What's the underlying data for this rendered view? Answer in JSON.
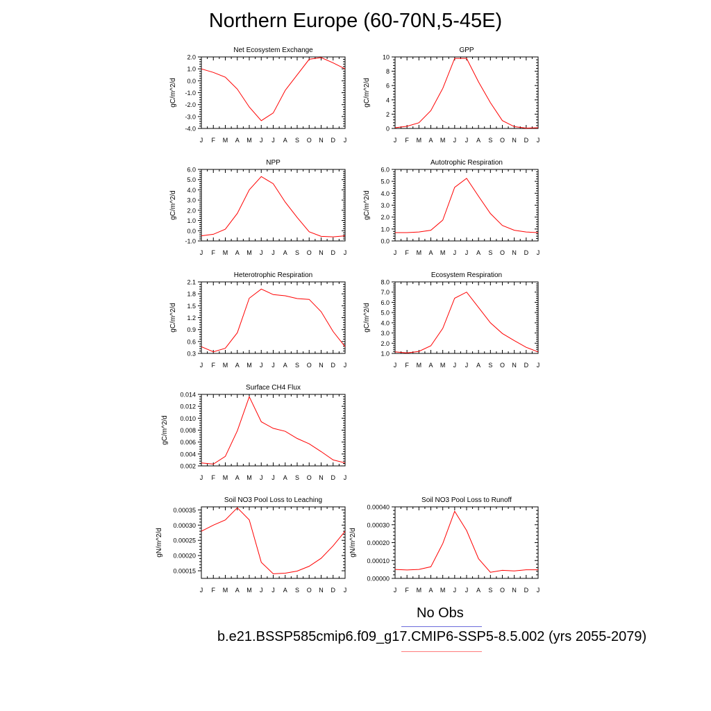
{
  "figure": {
    "title": "Northern Europe (60-70N,5-45E)",
    "legend": {
      "obs_label": "No Obs",
      "case_label": "b.e21.BSSP585cmip6.f09_g17.CMIP6-SSP5-8.5.002 (yrs 2055-2079)",
      "obs_color": "#6b6bdb",
      "case_color": "#ff0000"
    }
  },
  "chart_data": [
    {
      "type": "line",
      "title": "Net Ecosystem Exchange",
      "ylabel": "gC/m^2/d",
      "categories": [
        "J",
        "F",
        "M",
        "A",
        "M",
        "J",
        "J",
        "A",
        "S",
        "O",
        "N",
        "D",
        "J"
      ],
      "values": [
        1.0,
        0.7,
        0.3,
        -0.7,
        -2.2,
        -3.35,
        -2.7,
        -0.8,
        0.5,
        1.8,
        1.95,
        1.5,
        1.0
      ],
      "ylim": [
        -4.0,
        2.0
      ],
      "yticks": [
        "-4.0",
        "-3.0",
        "-2.0",
        "-1.0",
        "0.0",
        "1.0",
        "2.0"
      ],
      "ytick_values": [
        -4.0,
        -3.0,
        -2.0,
        -1.0,
        0.0,
        1.0,
        2.0
      ],
      "color": "#ff0000"
    },
    {
      "type": "line",
      "title": "GPP",
      "ylabel": "gC/m^2/d",
      "categories": [
        "J",
        "F",
        "M",
        "A",
        "M",
        "J",
        "J",
        "A",
        "S",
        "O",
        "N",
        "D",
        "J"
      ],
      "values": [
        0.1,
        0.3,
        0.8,
        2.5,
        5.6,
        9.8,
        9.8,
        6.5,
        3.6,
        1.1,
        0.25,
        0.05,
        0.1
      ],
      "ylim": [
        0,
        10
      ],
      "yticks": [
        "0",
        "2",
        "4",
        "6",
        "8",
        "10"
      ],
      "ytick_values": [
        0,
        2,
        4,
        6,
        8,
        10
      ],
      "color": "#ff0000"
    },
    {
      "type": "line",
      "title": "NPP",
      "ylabel": "gC/m^2/d",
      "categories": [
        "J",
        "F",
        "M",
        "A",
        "M",
        "J",
        "J",
        "A",
        "S",
        "O",
        "N",
        "D",
        "J"
      ],
      "values": [
        -0.5,
        -0.35,
        0.15,
        1.7,
        4.0,
        5.3,
        4.6,
        2.8,
        1.3,
        -0.1,
        -0.55,
        -0.6,
        -0.5
      ],
      "ylim": [
        -1.0,
        6.0
      ],
      "yticks": [
        "-1.0",
        "0.0",
        "1.0",
        "2.0",
        "3.0",
        "4.0",
        "5.0",
        "6.0"
      ],
      "ytick_values": [
        -1.0,
        0.0,
        1.0,
        2.0,
        3.0,
        4.0,
        5.0,
        6.0
      ],
      "color": "#ff0000"
    },
    {
      "type": "line",
      "title": "Autotrophic Respiration",
      "ylabel": "gC/m^2/d",
      "categories": [
        "J",
        "F",
        "M",
        "A",
        "M",
        "J",
        "J",
        "A",
        "S",
        "O",
        "N",
        "D",
        "J"
      ],
      "values": [
        0.7,
        0.7,
        0.75,
        0.9,
        1.75,
        4.5,
        5.25,
        3.75,
        2.3,
        1.3,
        0.9,
        0.75,
        0.7
      ],
      "ylim": [
        0.0,
        6.0
      ],
      "yticks": [
        "0.0",
        "1.0",
        "2.0",
        "3.0",
        "4.0",
        "5.0",
        "6.0"
      ],
      "ytick_values": [
        0.0,
        1.0,
        2.0,
        3.0,
        4.0,
        5.0,
        6.0
      ],
      "color": "#ff0000"
    },
    {
      "type": "line",
      "title": "Heterotrophic Respiration",
      "ylabel": "gC/m^2/d",
      "categories": [
        "J",
        "F",
        "M",
        "A",
        "M",
        "J",
        "J",
        "A",
        "S",
        "O",
        "N",
        "D",
        "J"
      ],
      "values": [
        0.47,
        0.34,
        0.43,
        0.82,
        1.69,
        1.92,
        1.78,
        1.75,
        1.68,
        1.66,
        1.35,
        0.85,
        0.47
      ],
      "ylim": [
        0.3,
        2.1
      ],
      "yticks": [
        "0.3",
        "0.6",
        "0.9",
        "1.2",
        "1.5",
        "1.8",
        "2.1"
      ],
      "ytick_values": [
        0.3,
        0.6,
        0.9,
        1.2,
        1.5,
        1.8,
        2.1
      ],
      "color": "#ff0000"
    },
    {
      "type": "line",
      "title": "Ecosystem Respiration",
      "ylabel": "gC/m^2/d",
      "categories": [
        "J",
        "F",
        "M",
        "A",
        "M",
        "J",
        "J",
        "A",
        "S",
        "O",
        "N",
        "D",
        "J"
      ],
      "values": [
        1.15,
        1.05,
        1.2,
        1.75,
        3.45,
        6.4,
        7.0,
        5.5,
        4.0,
        2.95,
        2.25,
        1.6,
        1.15
      ],
      "ylim": [
        1.0,
        8.0
      ],
      "yticks": [
        "1.0",
        "2.0",
        "3.0",
        "4.0",
        "5.0",
        "6.0",
        "7.0",
        "8.0"
      ],
      "ytick_values": [
        1.0,
        2.0,
        3.0,
        4.0,
        5.0,
        6.0,
        7.0,
        8.0
      ],
      "color": "#ff0000"
    },
    {
      "type": "line",
      "title": "Surface CH4 Flux",
      "ylabel": "gC/m^2/d",
      "categories": [
        "J",
        "F",
        "M",
        "A",
        "M",
        "J",
        "J",
        "A",
        "S",
        "O",
        "N",
        "D",
        "J"
      ],
      "values": [
        0.0025,
        0.0023,
        0.0036,
        0.0079,
        0.0136,
        0.0094,
        0.0083,
        0.0078,
        0.0066,
        0.0057,
        0.0044,
        0.003,
        0.0025
      ],
      "ylim": [
        0.002,
        0.014
      ],
      "yticks": [
        "0.002",
        "0.004",
        "0.006",
        "0.008",
        "0.010",
        "0.012",
        "0.014"
      ],
      "ytick_values": [
        0.002,
        0.004,
        0.006,
        0.008,
        0.01,
        0.012,
        0.014
      ],
      "color": "#ff0000"
    },
    {
      "type": "line",
      "title": "Soil NO3 Pool Loss to Leaching",
      "ylabel": "gN/m^2/d",
      "categories": [
        "J",
        "F",
        "M",
        "A",
        "M",
        "J",
        "J",
        "A",
        "S",
        "O",
        "N",
        "D",
        "J"
      ],
      "values": [
        0.00028,
        0.0003,
        0.000317,
        0.000357,
        0.000317,
        0.000178,
        0.00014,
        0.000142,
        0.000149,
        0.000165,
        0.000191,
        0.000232,
        0.00028
      ],
      "ylim": [
        0.000125,
        0.00036
      ],
      "yticks": [
        "0.00015",
        "0.00020",
        "0.00025",
        "0.00030",
        "0.00035"
      ],
      "ytick_values": [
        0.00015,
        0.0002,
        0.00025,
        0.0003,
        0.00035
      ],
      "color": "#ff0000"
    },
    {
      "type": "line",
      "title": "Soil NO3 Pool Loss to Runoff",
      "ylabel": "gN/m^2/d",
      "categories": [
        "J",
        "F",
        "M",
        "A",
        "M",
        "J",
        "J",
        "A",
        "S",
        "O",
        "N",
        "D",
        "J"
      ],
      "values": [
        5e-05,
        4.7e-05,
        5e-05,
        6.5e-05,
        0.000195,
        0.000375,
        0.000268,
        0.00011,
        3.4e-05,
        4.5e-05,
        4.2e-05,
        4.8e-05,
        4.8e-05
      ],
      "ylim": [
        0.0,
        0.0004
      ],
      "yticks": [
        "0.00000",
        "0.00010",
        "0.00020",
        "0.00030",
        "0.00040"
      ],
      "ytick_values": [
        0.0,
        0.0001,
        0.0002,
        0.0003,
        0.0004
      ],
      "color": "#ff0000"
    }
  ]
}
